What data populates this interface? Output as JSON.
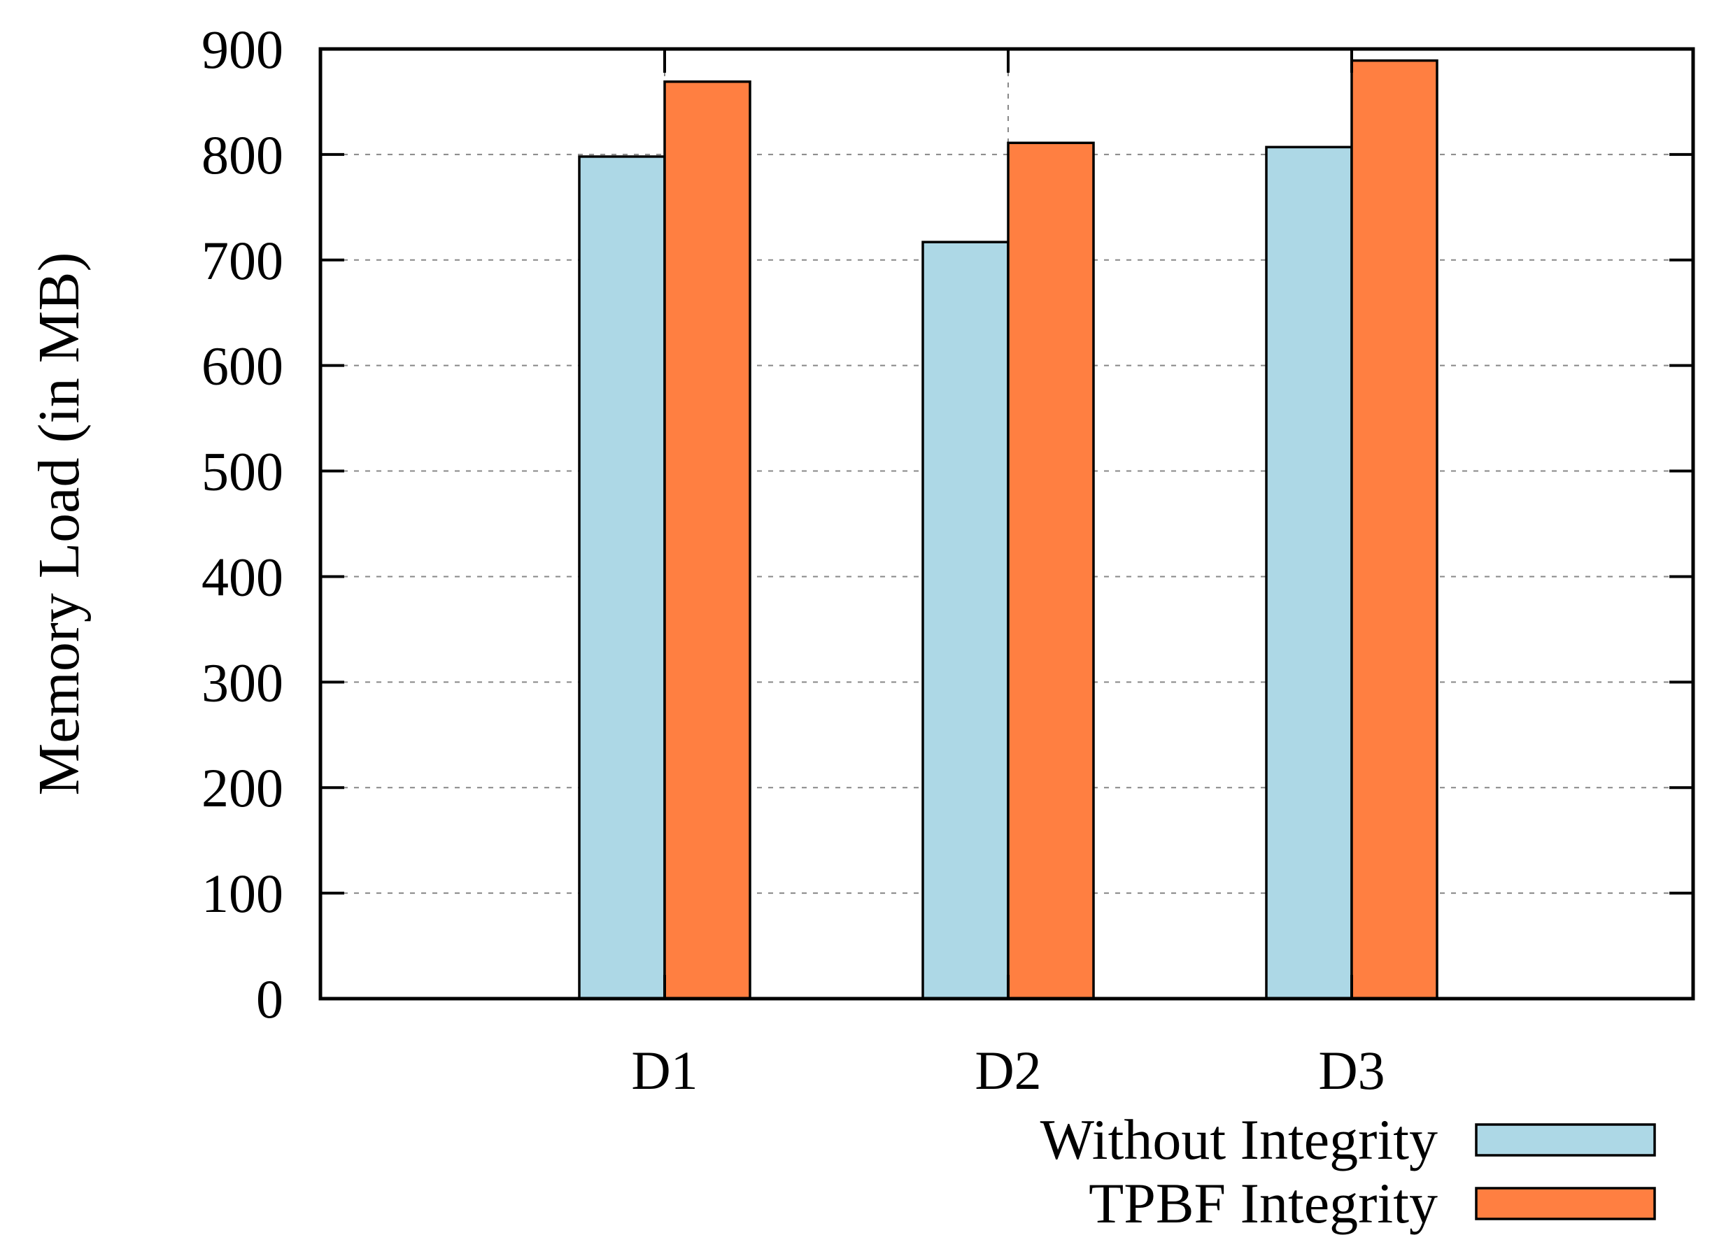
{
  "chart_data": {
    "type": "bar",
    "title": "",
    "xlabel": "",
    "ylabel": "Memory Load (in MB)",
    "categories": [
      "D1",
      "D2",
      "D3"
    ],
    "series": [
      {
        "name": "Without Integrity",
        "color": "#add8e6",
        "values": [
          798,
          717,
          807
        ]
      },
      {
        "name": "TPBF Integrity",
        "color": "#ff7f41",
        "values": [
          869,
          811,
          889
        ]
      }
    ],
    "ylim": [
      0,
      900
    ],
    "yticks": [
      "0",
      "100",
      "200",
      "300",
      "400",
      "500",
      "600",
      "700",
      "800",
      "900"
    ],
    "grid": true,
    "legend_position": "bottom-right"
  }
}
